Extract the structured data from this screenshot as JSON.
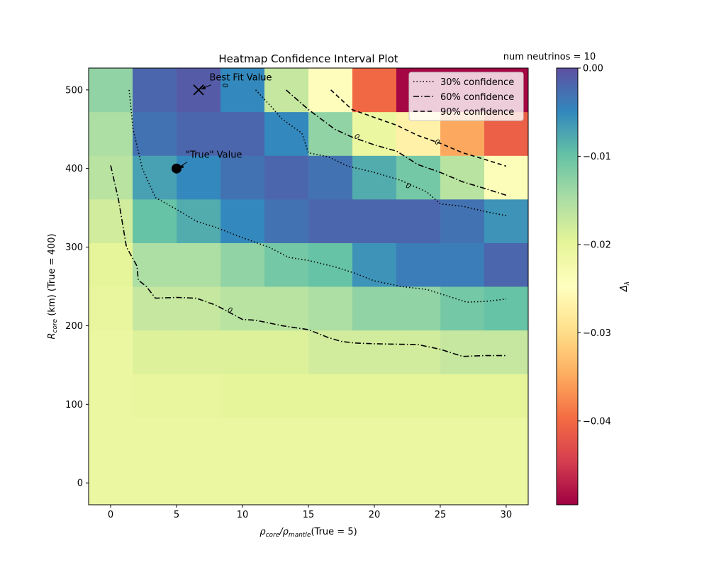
{
  "chart_data": {
    "type": "heatmap",
    "title": "Heatmap Confidence Interval Plot",
    "annotation_top_right": "num neutrinos = 10",
    "xlabel": "ρ",
    "xlabel_sub": "core",
    "xlabel_mid": "/ρ",
    "xlabel_sub2": "mantle",
    "xlabel_tail": "(True = 5)",
    "ylabel": "R",
    "ylabel_sub": "core",
    "ylabel_tail": " (km) (True = 400)",
    "xlim": [
      -1.67,
      31.67
    ],
    "ylim": [
      -27.8,
      527.8
    ],
    "x_ticks": [
      0,
      5,
      10,
      15,
      20,
      25,
      30
    ],
    "y_ticks": [
      0,
      100,
      200,
      300,
      400,
      500
    ],
    "x_centers": [
      0,
      3.33,
      6.67,
      10,
      13.33,
      16.67,
      20,
      23.33,
      26.67,
      30
    ],
    "y_centers": [
      0,
      55.6,
      111.1,
      166.7,
      222.2,
      277.8,
      333.3,
      388.9,
      444.4,
      500
    ],
    "z_rows_bottom_to_top": [
      [
        -0.021,
        -0.021,
        -0.021,
        -0.021,
        -0.021,
        -0.021,
        -0.021,
        -0.021,
        -0.021,
        -0.021
      ],
      [
        -0.021,
        -0.021,
        -0.021,
        -0.021,
        -0.021,
        -0.021,
        -0.021,
        -0.021,
        -0.021,
        -0.021
      ],
      [
        -0.021,
        -0.0205,
        -0.0205,
        -0.02,
        -0.02,
        -0.02,
        -0.02,
        -0.02,
        -0.02,
        -0.02
      ],
      [
        -0.021,
        -0.019,
        -0.019,
        -0.019,
        -0.019,
        -0.018,
        -0.018,
        -0.018,
        -0.017,
        -0.017
      ],
      [
        -0.0205,
        -0.017,
        -0.017,
        -0.016,
        -0.016,
        -0.015,
        -0.013,
        -0.013,
        -0.011,
        -0.01
      ],
      [
        -0.02,
        -0.015,
        -0.015,
        -0.013,
        -0.011,
        -0.01,
        -0.006,
        -0.004,
        -0.004,
        -0.002
      ],
      [
        -0.018,
        -0.01,
        -0.008,
        -0.005,
        -0.003,
        -0.002,
        -0.002,
        -0.002,
        -0.003,
        -0.006
      ],
      [
        -0.016,
        -0.007,
        -0.005,
        -0.003,
        -0.002,
        -0.003,
        -0.008,
        -0.011,
        -0.016,
        -0.024
      ],
      [
        -0.015,
        -0.003,
        -0.002,
        -0.002,
        -0.005,
        -0.013,
        -0.021,
        -0.027,
        -0.035,
        -0.041
      ],
      [
        -0.013,
        -0.002,
        -0.001,
        -0.005,
        -0.017,
        -0.025,
        -0.04,
        -0.049,
        -0.049,
        -0.049
      ]
    ],
    "colorbar": {
      "label": "Δ",
      "label_sub": "λ",
      "vmin": -0.0495,
      "vmax": 0.0,
      "ticks": [
        0.0,
        -0.01,
        -0.02,
        -0.03,
        -0.04
      ],
      "tick_labels": [
        "0.00",
        "−0.01",
        "−0.02",
        "−0.03",
        "−0.04"
      ],
      "colormap": "Spectral"
    },
    "contours": [
      {
        "name": "30% confidence",
        "dash": "dotted",
        "label": "0",
        "label_at": [
          8.5,
          505,
          0
        ],
        "label_angle": 80,
        "points": [
          [
            1.4,
            500
          ],
          [
            1.7,
            450
          ],
          [
            2.4,
            400
          ],
          [
            3.4,
            363
          ],
          [
            5,
            348
          ],
          [
            6.5,
            333
          ],
          [
            8,
            325
          ],
          [
            10,
            312
          ],
          [
            12,
            300
          ],
          [
            13.5,
            287
          ],
          [
            15,
            283
          ],
          [
            17,
            275
          ],
          [
            18.5,
            267
          ],
          [
            20,
            257
          ],
          [
            22,
            250
          ],
          [
            24,
            246
          ],
          [
            25.5,
            238
          ],
          [
            27,
            230
          ],
          [
            28.5,
            231
          ],
          [
            30,
            234
          ]
        ]
      },
      {
        "name": "30% confidence",
        "dash": "dotted",
        "label": "0",
        "label_at": [
          22.5,
          375
        ],
        "label_angle": 25,
        "points": [
          [
            11,
            500
          ],
          [
            12,
            482
          ],
          [
            13,
            463
          ],
          [
            14.5,
            445
          ],
          [
            15,
            420
          ],
          [
            16.5,
            415
          ],
          [
            18,
            403
          ],
          [
            20,
            395
          ],
          [
            22,
            385
          ],
          [
            24,
            370
          ],
          [
            25,
            355
          ],
          [
            26.7,
            352
          ],
          [
            28.5,
            345
          ],
          [
            30,
            340
          ]
        ]
      },
      {
        "name": "60% confidence",
        "dash": "dashdot",
        "label": "0",
        "label_at": [
          9,
          217
        ],
        "label_angle": 20,
        "points": [
          [
            0,
            404
          ],
          [
            0.6,
            360
          ],
          [
            1.2,
            300
          ],
          [
            2,
            276
          ],
          [
            2.1,
            258
          ],
          [
            2.7,
            250
          ],
          [
            3.4,
            235
          ],
          [
            5,
            236
          ],
          [
            6.5,
            235
          ],
          [
            8,
            226
          ],
          [
            10,
            208
          ],
          [
            11,
            207
          ],
          [
            13,
            200
          ],
          [
            15,
            195
          ],
          [
            16.5,
            185
          ],
          [
            17.5,
            180
          ],
          [
            18.5,
            178
          ],
          [
            20,
            177
          ],
          [
            23.3,
            176
          ],
          [
            25,
            170
          ],
          [
            26.7,
            161
          ],
          [
            28.3,
            162
          ],
          [
            30,
            162
          ]
        ]
      },
      {
        "name": "60% confidence",
        "dash": "dashdot",
        "label": "0",
        "label_at": [
          18.6,
          438
        ],
        "label_angle": 30,
        "points": [
          [
            13.3,
            500
          ],
          [
            15,
            475
          ],
          [
            17,
            450
          ],
          [
            18.3,
            440
          ],
          [
            20,
            430
          ],
          [
            21.7,
            422
          ],
          [
            23.3,
            405
          ],
          [
            25,
            395
          ],
          [
            26.7,
            383
          ],
          [
            28.3,
            375
          ],
          [
            30,
            366
          ]
        ]
      },
      {
        "name": "90% confidence",
        "dash": "dashed",
        "label": "−0",
        "label_at": [
          24.5,
          432
        ],
        "label_angle": 20,
        "points": [
          [
            16.7,
            500
          ],
          [
            18.3,
            475
          ],
          [
            20,
            465
          ],
          [
            21.7,
            455
          ],
          [
            23.3,
            442
          ],
          [
            25,
            432
          ],
          [
            26.7,
            420
          ],
          [
            28.3,
            412
          ],
          [
            30,
            403
          ]
        ]
      }
    ],
    "markers": [
      {
        "name": "Best Fit Value",
        "shape": "x",
        "x": 6.67,
        "y": 500,
        "text_at": [
          7.5,
          510
        ]
      },
      {
        "name": "\"True\" Value",
        "shape": "circle",
        "x": 5,
        "y": 400,
        "text_at": [
          5.7,
          412
        ]
      }
    ],
    "legend": {
      "placement": "upper right",
      "entries": [
        {
          "label": "30% confidence",
          "dash": "dotted"
        },
        {
          "label": "60% confidence",
          "dash": "dashdot"
        },
        {
          "label": "90% confidence",
          "dash": "dashed"
        }
      ]
    }
  }
}
